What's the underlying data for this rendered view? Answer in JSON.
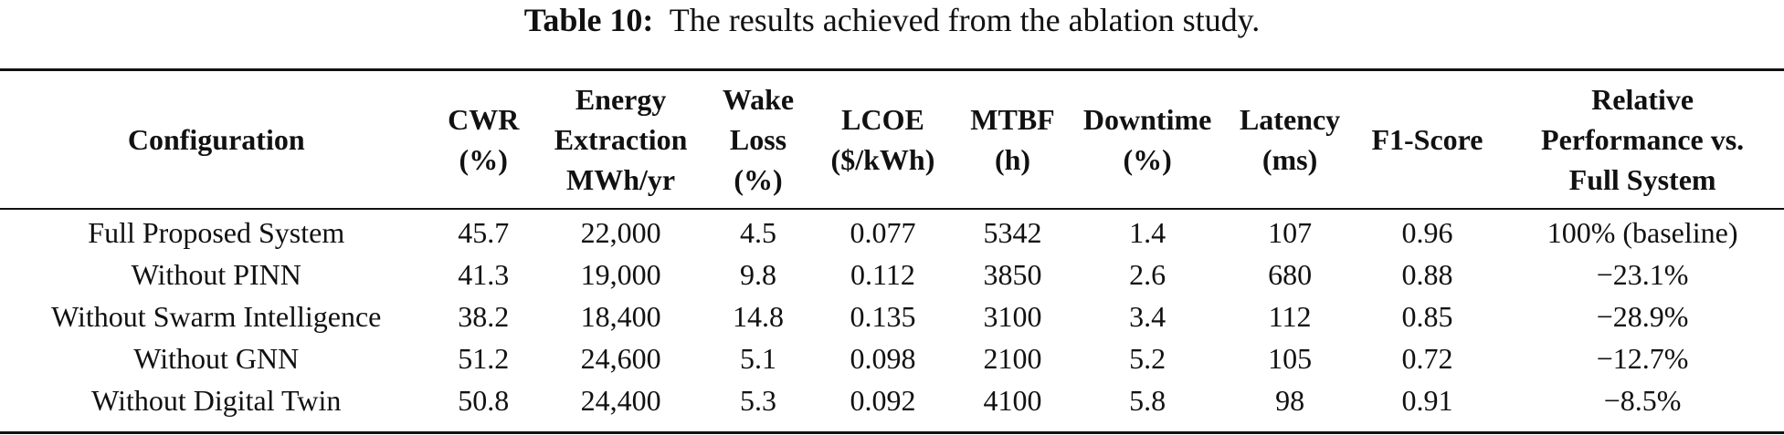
{
  "caption": {
    "label": "Table 10:",
    "text": "The results achieved from the ablation study."
  },
  "table": {
    "headers": [
      [
        "Configuration"
      ],
      [
        "CWR",
        "(%)"
      ],
      [
        "Energy",
        "Extraction",
        "MWh/yr"
      ],
      [
        "Wake",
        "Loss",
        "(%)"
      ],
      [
        "LCOE",
        "($/kWh)"
      ],
      [
        "MTBF",
        "(h)"
      ],
      [
        "Downtime",
        "(%)"
      ],
      [
        "Latency",
        "(ms)"
      ],
      [
        "F1-Score"
      ],
      [
        "Relative",
        "Performance vs.",
        "Full System"
      ]
    ],
    "rows": [
      [
        "Full Proposed System",
        "45.7",
        "22,000",
        "4.5",
        "0.077",
        "5342",
        "1.4",
        "107",
        "0.96",
        "100% (baseline)"
      ],
      [
        "Without PINN",
        "41.3",
        "19,000",
        "9.8",
        "0.112",
        "3850",
        "2.6",
        "680",
        "0.88",
        "−23.1%"
      ],
      [
        "Without Swarm Intelligence",
        "38.2",
        "18,400",
        "14.8",
        "0.135",
        "3100",
        "3.4",
        "112",
        "0.85",
        "−28.9%"
      ],
      [
        "Without GNN",
        "51.2",
        "24,600",
        "5.1",
        "0.098",
        "2100",
        "5.2",
        "105",
        "0.72",
        "−12.7%"
      ],
      [
        "Without Digital Twin",
        "50.8",
        "24,400",
        "5.3",
        "0.092",
        "4100",
        "5.8",
        "98",
        "0.91",
        "−8.5%"
      ]
    ]
  }
}
